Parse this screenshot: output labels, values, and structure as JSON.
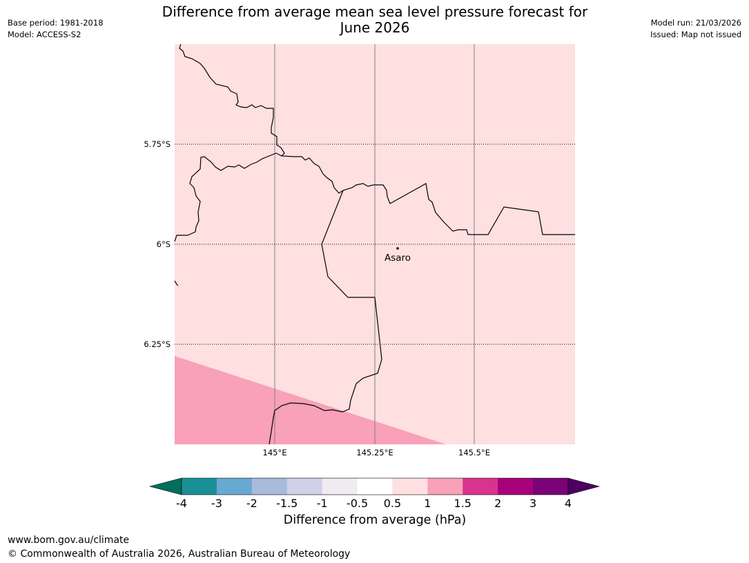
{
  "header": {
    "title_line1": "Difference from average mean sea level pressure forecast for",
    "title_line2": "June 2026",
    "base_period": "Base period: 1981-2018",
    "model": "Model: ACCESS-S2",
    "model_run": "Model run: 21/03/2026",
    "issued": "Issued: Map not issued"
  },
  "map": {
    "lat_labels": [
      "5.75°S",
      "6°S",
      "6.25°S"
    ],
    "lon_labels": [
      "145°E",
      "145.25°E",
      "145.5°E"
    ],
    "place_label": "Asaro",
    "region_values_hPa": {
      "main": "0.5 to 1",
      "southwest": "1 to 1.5"
    }
  },
  "colorbar": {
    "title": "Difference from average (hPa)",
    "ticks": [
      "-4",
      "-3",
      "-2",
      "-1.5",
      "-1",
      "-0.5",
      "0.5",
      "1",
      "1.5",
      "2",
      "3",
      "4"
    ],
    "colors": [
      "#1a9096",
      "#68a9d2",
      "#a8bbdd",
      "#d0d0e8",
      "#efebf0",
      "#ffffff",
      "#fde0df",
      "#f8a1b8",
      "#d9338d",
      "#a8007a",
      "#7a0177"
    ],
    "under_color": "#006e5f",
    "over_color": "#4d0061"
  },
  "footer": {
    "url": "www.bom.gov.au/climate",
    "copyright": "© Commonwealth of Australia 2026, Australian Bureau of Meteorology"
  }
}
